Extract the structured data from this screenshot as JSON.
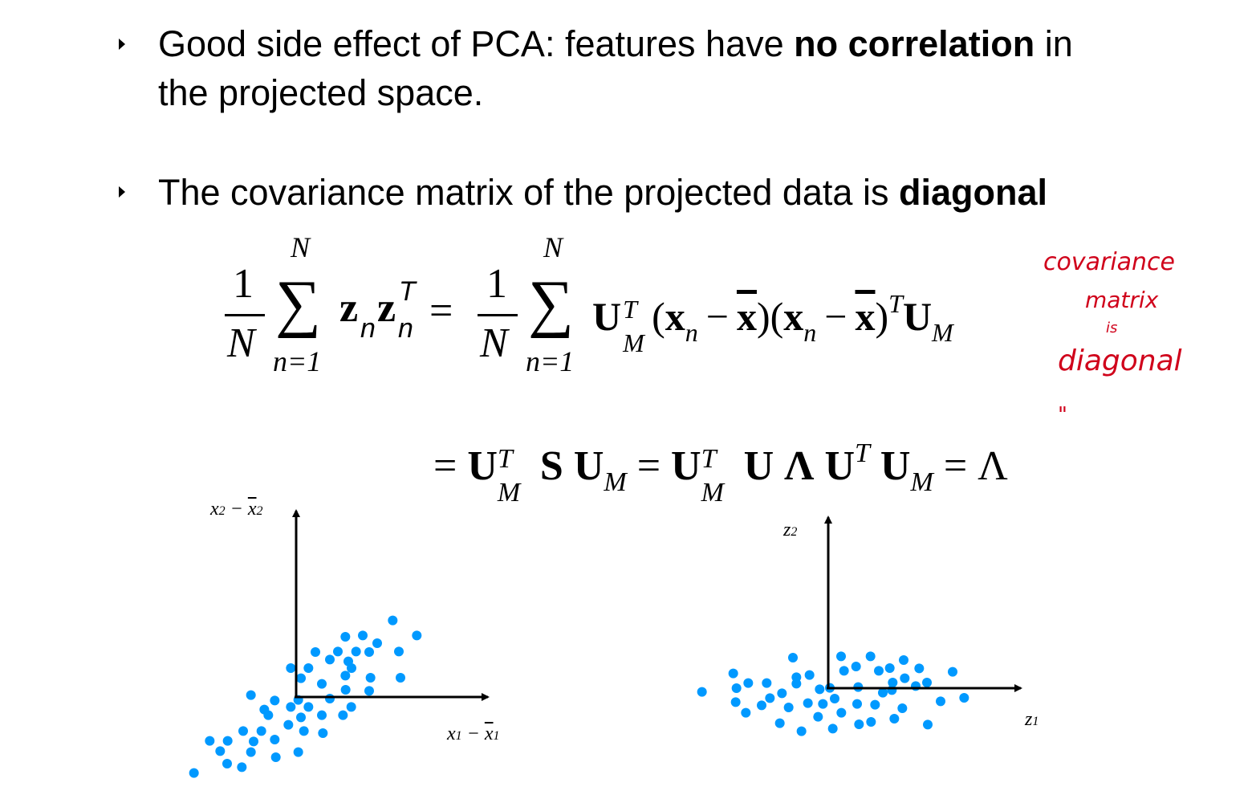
{
  "bullets": [
    {
      "pre": "Good side effect of PCA: features have ",
      "bold": "no correlation",
      "post": " in",
      "line2": "the projected space."
    },
    {
      "pre": "The covariance matrix of the projected data is ",
      "bold": "diagonal"
    }
  ],
  "equation": {
    "one": "1",
    "N": "N",
    "sum": "∑",
    "upper": "N",
    "lower": "n=1",
    "lhs_z": "z",
    "n": "n",
    "T": "T",
    "eq": "=",
    "U": "U",
    "M": "M",
    "x": "x",
    "xbar": "x",
    "minus": "−",
    "lparen": "(",
    "rparen": ")",
    "S": "S",
    "Lambda_bold": "Λ",
    "Lambda": "Λ"
  },
  "annotation": {
    "line1": "covariance",
    "line2": "matrix",
    "line3": "is",
    "line4": "diagonal",
    "mark": "\""
  },
  "plots": {
    "left": {
      "ylabel": "x",
      "ylabel_sub": "2",
      "ylabel_bar": "x",
      "xlabel": "x",
      "xlabel_sub": "1",
      "minus": "−"
    },
    "right": {
      "ylabel": "z",
      "ylabel_sub": "2",
      "xlabel": "z",
      "xlabel_sub": "1"
    },
    "point_color": "#0099ff"
  }
}
